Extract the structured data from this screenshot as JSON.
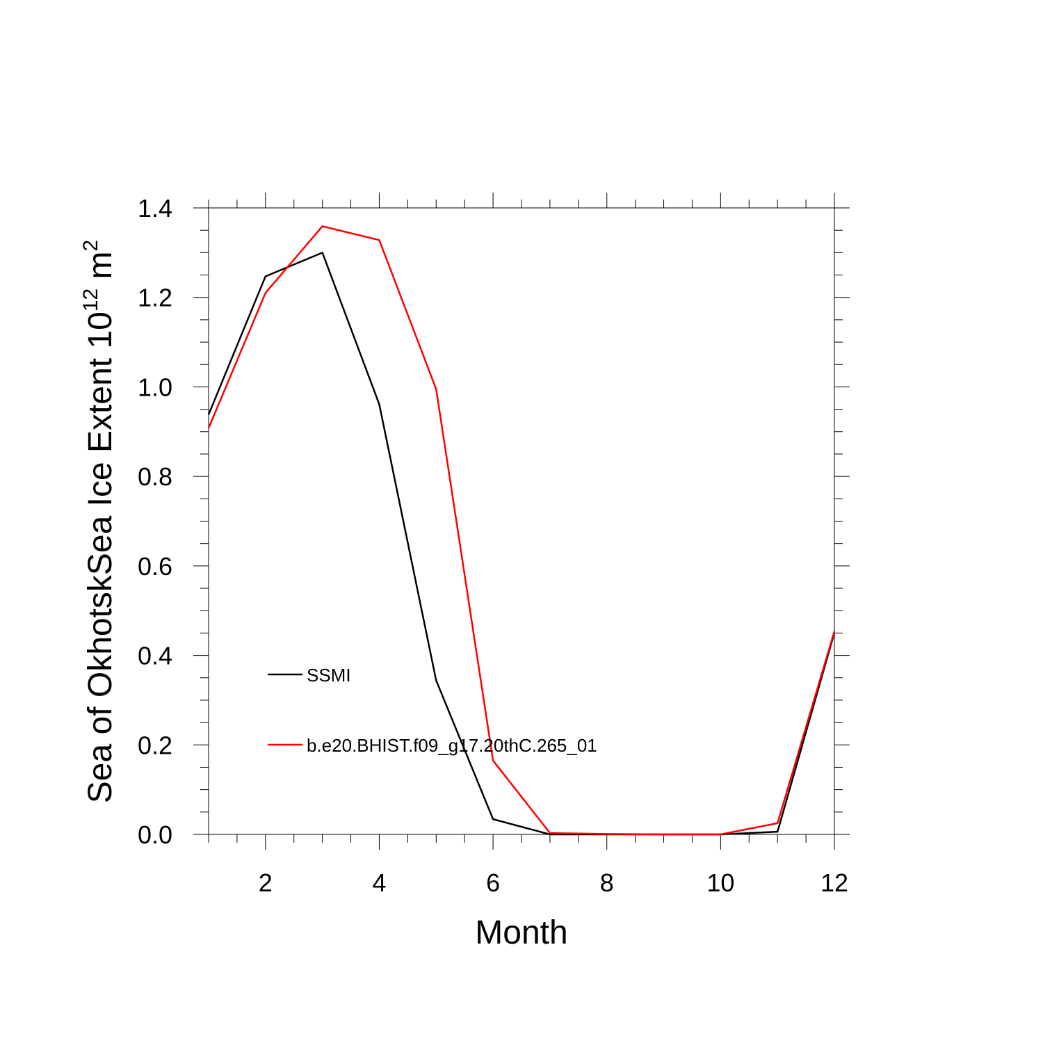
{
  "chart_data": {
    "type": "line",
    "xlabel": "Month",
    "ylabel_parts": [
      {
        "text": "Sea of OkhotskSea Ice Extent 10"
      },
      {
        "text": "12",
        "sup": true
      },
      {
        "text": " m"
      },
      {
        "text": "2",
        "sup": true
      }
    ],
    "x": [
      1,
      2,
      3,
      4,
      5,
      6,
      7,
      8,
      9,
      10,
      11,
      12
    ],
    "series": [
      {
        "name": "SSMI",
        "color": "#000000",
        "values": [
          0.938,
          1.247,
          1.3,
          0.961,
          0.344,
          0.034,
          0.0,
          0.0,
          0.0,
          0.0,
          0.006,
          0.451
        ]
      },
      {
        "name": "b.e20.BHIST.f09_g17.20thC.265_01",
        "color": "#ff0000",
        "values": [
          0.908,
          1.21,
          1.359,
          1.328,
          0.995,
          0.165,
          0.003,
          0.001,
          0.0,
          0.0,
          0.025,
          0.454
        ]
      }
    ],
    "xlim": [
      1,
      12
    ],
    "xticks": [
      2,
      4,
      6,
      8,
      10,
      12
    ],
    "xminorticks": [
      1,
      1.5,
      2.5,
      3,
      3.5,
      4.5,
      5,
      5.5,
      6.5,
      7,
      7.5,
      8.5,
      9,
      9.5,
      10.5,
      11,
      11.5
    ],
    "ylim": [
      0,
      1.4
    ],
    "yticks": [
      {
        "value": 0,
        "label": "0.0"
      },
      0.2,
      0.4,
      0.6,
      0.8,
      {
        "value": 1,
        "label": "1.0"
      },
      1.2,
      1.4
    ],
    "yminorticks": [
      0.05,
      0.1,
      0.15,
      0.25,
      0.3,
      0.35,
      0.45,
      0.5,
      0.55,
      0.65,
      0.7,
      0.75,
      0.85,
      0.9,
      0.95,
      1.05,
      1.1,
      1.15,
      1.25,
      1.3,
      1.35
    ]
  }
}
